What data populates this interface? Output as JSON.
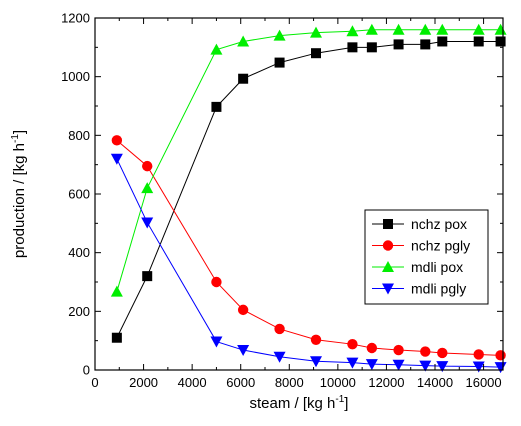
{
  "chart_data": {
    "type": "line",
    "title": "",
    "xlabel": "steam / [kg h",
    "xlabel_sup": "-1",
    "xlabel_end": "]",
    "ylabel": "production / [kg h",
    "ylabel_sup": "-1",
    "ylabel_end": "]",
    "xlim": [
      0,
      16800
    ],
    "ylim": [
      0,
      1200
    ],
    "xticks": [
      0,
      2000,
      4000,
      6000,
      8000,
      10000,
      12000,
      14000,
      16000
    ],
    "yticks": [
      0,
      200,
      400,
      600,
      800,
      1000,
      1200
    ],
    "xtick_labels": [
      "0",
      "2000",
      "4000",
      "6000",
      "8000",
      "10000",
      "12000",
      "14000",
      "16000"
    ],
    "ytick_labels": [
      "0",
      "200",
      "400",
      "600",
      "800",
      "1000",
      "1200"
    ],
    "grid": false,
    "legend_position": "right",
    "x": [
      900,
      2150,
      5000,
      6100,
      7600,
      9100,
      10600,
      11400,
      12500,
      13600,
      14300,
      15800,
      16700
    ],
    "series": [
      {
        "name": "nchz pox",
        "color": "#000000",
        "marker": "square",
        "values": [
          110,
          320,
          897,
          993,
          1048,
          1080,
          1100,
          1100,
          1110,
          1110,
          1120,
          1120,
          1120
        ]
      },
      {
        "name": "nchz pgly",
        "color": "#ff0000",
        "marker": "circle",
        "values": [
          783,
          695,
          300,
          205,
          140,
          103,
          88,
          75,
          68,
          63,
          58,
          53,
          50
        ]
      },
      {
        "name": "mdli pox",
        "color": "#00ee00",
        "marker": "triangle-up",
        "values": [
          267,
          620,
          1092,
          1120,
          1140,
          1150,
          1155,
          1160,
          1160,
          1160,
          1160,
          1160,
          1160
        ]
      },
      {
        "name": "mdli pgly",
        "color": "#0000ff",
        "marker": "triangle-down",
        "values": [
          720,
          503,
          97,
          68,
          45,
          30,
          25,
          20,
          18,
          15,
          13,
          12,
          10
        ]
      }
    ]
  }
}
